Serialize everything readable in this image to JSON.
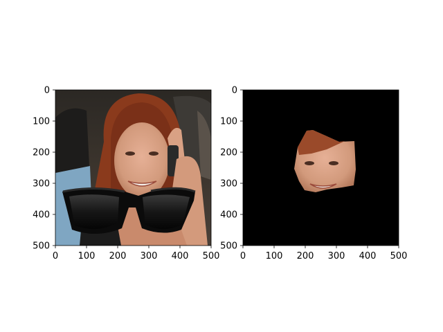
{
  "chart_data": [
    {
      "type": "image",
      "image_content": "photo of a smiling woman with auburn hair holding a phone, with dark sunglasses overlaid on the lower half of the image",
      "xlim": [
        0,
        500
      ],
      "ylim": [
        500,
        0
      ],
      "xticks": [
        0,
        100,
        200,
        300,
        400,
        500
      ],
      "yticks": [
        0,
        100,
        200,
        300,
        400,
        500
      ],
      "xtick_labels": [
        "0",
        "100",
        "200",
        "300",
        "400",
        "500"
      ],
      "ytick_labels": [
        "0",
        "100",
        "200",
        "300",
        "400",
        "500"
      ],
      "y_inverted": true,
      "grid": false
    },
    {
      "type": "image",
      "image_content": "segmented face region of the woman on a black background",
      "background_color": "#000000",
      "xlim": [
        0,
        500
      ],
      "ylim": [
        500,
        0
      ],
      "xticks": [
        0,
        100,
        200,
        300,
        400,
        500
      ],
      "yticks": [
        0,
        100,
        200,
        300,
        400,
        500
      ],
      "xtick_labels": [
        "0",
        "100",
        "200",
        "300",
        "400",
        "500"
      ],
      "ytick_labels": [
        "0",
        "100",
        "200",
        "300",
        "400",
        "500"
      ],
      "y_inverted": true,
      "grid": false
    }
  ],
  "colors": {
    "hair": "#8a3a1c",
    "skin": "#d9a184",
    "glasses": "#111111",
    "mask_background": "#000000",
    "frame": "#000000"
  }
}
